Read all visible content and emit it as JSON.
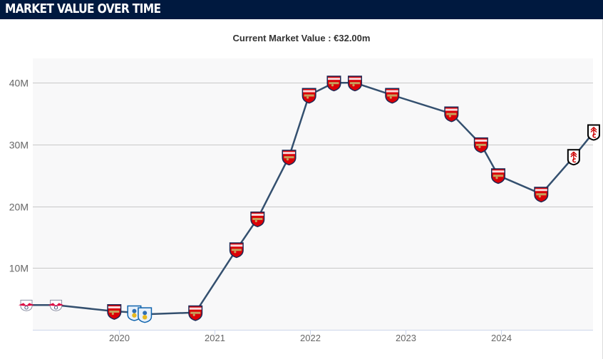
{
  "header": {
    "title": "MARKET VALUE OVER TIME"
  },
  "chart_data": {
    "type": "line",
    "title": "Current Market Value : €32.00m",
    "xlabel": "",
    "ylabel": "",
    "ylim": [
      0,
      44000000
    ],
    "xlim": [
      2019.0,
      2024.95
    ],
    "grid": true,
    "y_ticks": [
      {
        "value": 10000000,
        "label": "10M"
      },
      {
        "value": 20000000,
        "label": "20M"
      },
      {
        "value": 30000000,
        "label": "30M"
      },
      {
        "value": 40000000,
        "label": "40M"
      }
    ],
    "x_ticks": [
      {
        "value": 2020,
        "label": "2020"
      },
      {
        "value": 2021,
        "label": "2021"
      },
      {
        "value": 2022,
        "label": "2022"
      },
      {
        "value": 2023,
        "label": "2023"
      },
      {
        "value": 2024,
        "label": "2024"
      }
    ],
    "colors": {
      "line": "#34506f",
      "plot_bg": "#f8f8f9",
      "grid": "#c8c8c8",
      "axis": "#ccd6eb"
    },
    "series": [
      {
        "name": "Market value",
        "points": [
          {
            "x": 2019.03,
            "value": 4000000,
            "club": "RB Leipzig"
          },
          {
            "x": 2019.34,
            "value": 4000000,
            "club": "RB Leipzig"
          },
          {
            "x": 2019.95,
            "value": 3000000,
            "club": "Arsenal"
          },
          {
            "x": 2020.16,
            "value": 2800000,
            "club": "Huddersfield"
          },
          {
            "x": 2020.27,
            "value": 2500000,
            "club": "Huddersfield"
          },
          {
            "x": 2020.8,
            "value": 2800000,
            "club": "Arsenal"
          },
          {
            "x": 2021.23,
            "value": 13000000,
            "club": "Arsenal"
          },
          {
            "x": 2021.45,
            "value": 18000000,
            "club": "Arsenal"
          },
          {
            "x": 2021.78,
            "value": 28000000,
            "club": "Arsenal"
          },
          {
            "x": 2021.99,
            "value": 38000000,
            "club": "Arsenal"
          },
          {
            "x": 2022.25,
            "value": 40000000,
            "club": "Arsenal"
          },
          {
            "x": 2022.47,
            "value": 40000000,
            "club": "Arsenal"
          },
          {
            "x": 2022.86,
            "value": 38000000,
            "club": "Arsenal"
          },
          {
            "x": 2023.48,
            "value": 35000000,
            "club": "Arsenal"
          },
          {
            "x": 2023.79,
            "value": 30000000,
            "club": "Arsenal"
          },
          {
            "x": 2023.97,
            "value": 25000000,
            "club": "Arsenal"
          },
          {
            "x": 2024.42,
            "value": 22000000,
            "club": "Arsenal"
          },
          {
            "x": 2024.76,
            "value": 28000000,
            "club": "Fulham"
          },
          {
            "x": 2024.97,
            "value": 32000000,
            "club": "Fulham"
          }
        ]
      }
    ]
  }
}
